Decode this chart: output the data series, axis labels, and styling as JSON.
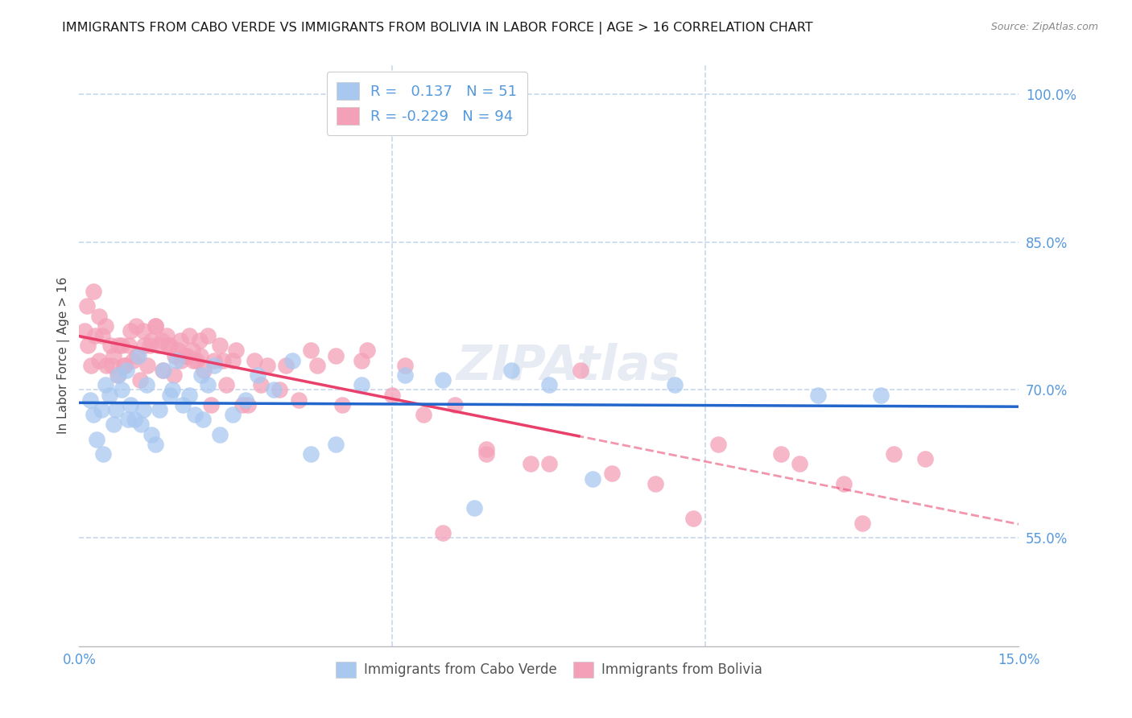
{
  "title": "IMMIGRANTS FROM CABO VERDE VS IMMIGRANTS FROM BOLIVIA IN LABOR FORCE | AGE > 16 CORRELATION CHART",
  "source": "Source: ZipAtlas.com",
  "ylabel": "In Labor Force | Age > 16",
  "legend_label_blue": "Immigrants from Cabo Verde",
  "legend_label_pink": "Immigrants from Bolivia",
  "R_blue": 0.137,
  "N_blue": 51,
  "R_pink": -0.229,
  "N_pink": 94,
  "color_blue": "#a8c8f0",
  "color_pink": "#f4a0b8",
  "color_trend_blue": "#2266cc",
  "color_trend_pink": "#e8406a",
  "color_axis": "#5599dd",
  "background_color": "#ffffff",
  "grid_color": "#c8d8ee",
  "xlim": [
    0.0,
    15.0
  ],
  "ylim": [
    44.0,
    103.0
  ],
  "y_ticks": [
    55.0,
    70.0,
    85.0,
    100.0
  ],
  "x_ticks": [
    0.0,
    5.0,
    10.0,
    15.0
  ],
  "title_fontsize": 11.5,
  "source_fontsize": 9,
  "tick_fontsize": 12,
  "legend_fontsize": 13,
  "cabo_x": [
    0.22,
    0.28,
    0.35,
    0.42,
    0.48,
    0.55,
    0.62,
    0.68,
    0.75,
    0.82,
    0.88,
    0.95,
    1.02,
    1.08,
    1.15,
    1.22,
    1.28,
    1.35,
    1.45,
    1.55,
    1.65,
    1.75,
    1.85,
    1.95,
    2.05,
    2.15,
    2.25,
    2.45,
    2.65,
    2.85,
    3.1,
    3.4,
    3.7,
    4.1,
    4.5,
    5.2,
    5.8,
    6.3,
    6.9,
    7.5,
    8.2,
    9.5,
    11.8,
    12.8,
    0.18,
    0.38,
    0.58,
    0.78,
    0.98,
    1.48,
    1.98
  ],
  "cabo_y": [
    67.5,
    65.0,
    68.0,
    70.5,
    69.5,
    66.5,
    71.5,
    70.0,
    72.0,
    68.5,
    67.0,
    73.5,
    68.0,
    70.5,
    65.5,
    64.5,
    68.0,
    72.0,
    69.5,
    73.0,
    68.5,
    69.5,
    67.5,
    71.5,
    70.5,
    72.5,
    65.5,
    67.5,
    69.0,
    71.5,
    70.0,
    73.0,
    63.5,
    64.5,
    70.5,
    71.5,
    71.0,
    58.0,
    72.0,
    70.5,
    61.0,
    70.5,
    69.5,
    69.5,
    69.0,
    63.5,
    68.0,
    67.0,
    66.5,
    70.0,
    67.0
  ],
  "bolivia_x": [
    0.08,
    0.14,
    0.19,
    0.25,
    0.31,
    0.37,
    0.43,
    0.49,
    0.55,
    0.61,
    0.67,
    0.73,
    0.79,
    0.85,
    0.91,
    0.97,
    1.03,
    1.09,
    1.15,
    1.21,
    1.27,
    1.33,
    1.39,
    1.45,
    1.51,
    1.57,
    1.63,
    1.69,
    1.75,
    1.81,
    1.87,
    1.93,
    1.99,
    2.05,
    2.15,
    2.25,
    2.35,
    2.45,
    2.6,
    2.8,
    3.0,
    3.2,
    3.5,
    3.8,
    4.2,
    4.6,
    5.0,
    5.5,
    6.0,
    6.5,
    7.2,
    8.0,
    9.8,
    11.2,
    12.5,
    13.5,
    0.12,
    0.22,
    0.32,
    0.42,
    0.52,
    0.62,
    0.72,
    0.82,
    0.92,
    1.02,
    1.12,
    1.22,
    1.32,
    1.42,
    1.52,
    1.62,
    1.72,
    1.82,
    1.92,
    2.1,
    2.3,
    2.5,
    2.7,
    2.9,
    3.3,
    3.7,
    4.1,
    4.5,
    5.2,
    5.8,
    6.5,
    7.5,
    8.5,
    9.2,
    10.2,
    11.5,
    12.2,
    13.0
  ],
  "bolivia_y": [
    76.0,
    74.5,
    72.5,
    75.5,
    73.0,
    75.5,
    72.5,
    74.5,
    73.5,
    71.5,
    74.5,
    72.5,
    74.5,
    73.0,
    76.5,
    71.0,
    74.5,
    72.5,
    75.0,
    76.5,
    74.5,
    72.0,
    75.5,
    74.5,
    71.5,
    74.0,
    73.0,
    73.5,
    75.5,
    74.0,
    73.0,
    73.5,
    72.0,
    75.5,
    73.0,
    74.5,
    70.5,
    73.0,
    68.5,
    73.0,
    72.5,
    70.0,
    69.0,
    72.5,
    68.5,
    74.0,
    69.5,
    67.5,
    68.5,
    63.5,
    62.5,
    72.0,
    57.0,
    63.5,
    56.5,
    63.0,
    78.5,
    80.0,
    77.5,
    76.5,
    72.5,
    74.5,
    72.5,
    76.0,
    73.5,
    76.0,
    74.5,
    76.5,
    75.0,
    74.5,
    73.5,
    75.0,
    73.5,
    73.0,
    75.0,
    68.5,
    73.0,
    74.0,
    68.5,
    70.5,
    72.5,
    74.0,
    73.5,
    73.0,
    72.5,
    55.5,
    64.0,
    62.5,
    61.5,
    60.5,
    64.5,
    62.5,
    60.5,
    63.5
  ]
}
